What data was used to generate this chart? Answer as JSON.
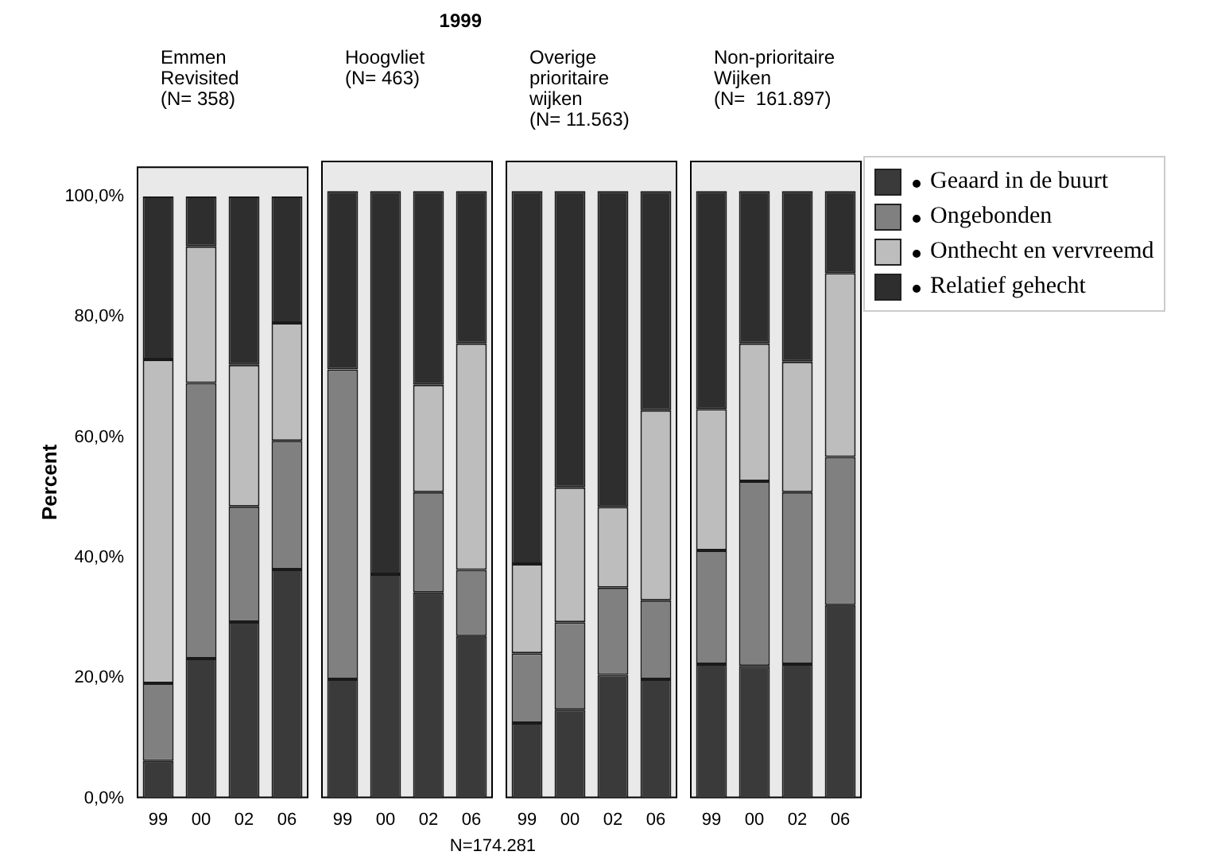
{
  "chart_data": [
    {
      "type": "bar",
      "subtitle": "Emmen\nRevisited\n(N= 358)",
      "ylabel": "Percent",
      "annotations": [
        "N=174.281"
      ],
      "stacked": true,
      "categories": [
        "99",
        "00",
        "02",
        "06"
      ],
      "ylim": [
        0,
        105
      ],
      "yticks": [
        {
          "value": 0,
          "label": "0,0%"
        },
        {
          "value": 20,
          "label": "20,0%"
        },
        {
          "value": 40,
          "label": "40,0%"
        },
        {
          "value": 60,
          "label": "60,0%"
        },
        {
          "value": 80,
          "label": "80,0%"
        },
        {
          "value": 100,
          "label": "100,0%"
        }
      ],
      "series": [
        {
          "color": "#3a3a3a",
          "values": [
            6.2,
            23.2,
            29.3,
            38.0
          ]
        },
        {
          "color": "#808080",
          "values": [
            12.9,
            45.8,
            19.2,
            21.4
          ]
        },
        {
          "color": "#bdbdbd",
          "values": [
            53.8,
            22.7,
            23.5,
            19.6
          ]
        },
        {
          "color": "#2e2e2e",
          "values": [
            27.1,
            8.3,
            28.0,
            21.0
          ]
        }
      ]
    },
    {
      "type": "bar",
      "title": "1999",
      "subtitle": "Hoogvliet\n(N= 463)",
      "stacked": true,
      "tick_labels": "x",
      "categories": [
        "99",
        "00",
        "02",
        "06"
      ],
      "ylim": [
        0,
        105
      ],
      "series": [
        {
          "color": "#3a3a3a",
          "values": [
            19.6,
            36.9,
            33.9,
            26.7
          ]
        },
        {
          "color": "#808080",
          "values": [
            51.0,
            0,
            16.5,
            10.9
          ]
        },
        {
          "color": "#bdbdbd",
          "values": [
            0,
            0,
            17.7,
            37.3
          ]
        },
        {
          "color": "#2e2e2e",
          "values": [
            29.4,
            63.1,
            31.9,
            25.1
          ]
        }
      ]
    },
    {
      "type": "bar",
      "subtitle": "Overige\nprioritaire\nwijken\n(N= 11.563)",
      "stacked": true,
      "tick_labels": "x",
      "categories": [
        "99",
        "00",
        "02",
        "06"
      ],
      "ylim": [
        0,
        105
      ],
      "series": [
        {
          "color": "#3a3a3a",
          "values": [
            12.4,
            14.6,
            20.3,
            19.6
          ]
        },
        {
          "color": "#808080",
          "values": [
            11.5,
            14.4,
            14.4,
            13.0
          ]
        },
        {
          "color": "#bdbdbd",
          "values": [
            14.7,
            22.2,
            13.3,
            31.3
          ]
        },
        {
          "color": "#2e2e2e",
          "values": [
            61.4,
            48.8,
            52.0,
            36.1
          ]
        }
      ]
    },
    {
      "type": "bar",
      "subtitle": "Non-prioritaire\nWijken\n(N=  161.897)",
      "stacked": true,
      "legend": "right",
      "tick_labels": "x",
      "categories": [
        "99",
        "00",
        "02",
        "06"
      ],
      "ylim": [
        0,
        105
      ],
      "series": [
        {
          "name": "Geaard in de buurt",
          "color": "#3a3a3a",
          "values": [
            22.1,
            21.8,
            22.1,
            31.8
          ]
        },
        {
          "name": "Ongebonden",
          "color": "#808080",
          "values": [
            18.7,
            30.4,
            28.3,
            24.4
          ]
        },
        {
          "name": "Onthecht en vervreemd",
          "color": "#bdbdbd",
          "values": [
            23.3,
            22.7,
            21.5,
            30.3
          ]
        },
        {
          "name": "Relatief gehecht",
          "color": "#2e2e2e",
          "values": [
            35.9,
            25.1,
            28.1,
            13.5
          ]
        }
      ]
    }
  ]
}
